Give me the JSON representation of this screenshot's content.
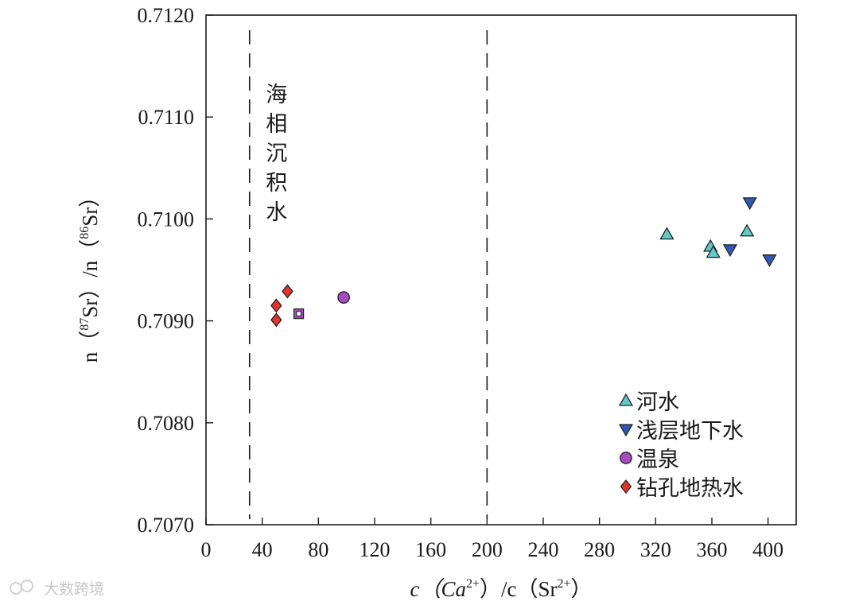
{
  "chart_data": {
    "type": "scatter",
    "xlabel": {
      "pre": "c（Ca",
      "sup1": "2+",
      "mid": "）/c（Sr",
      "sup2": "2+",
      "post": "）"
    },
    "ylabel": {
      "pre": "n（",
      "sup1": "87",
      "mid": "Sr）/n（",
      "sup2": "86",
      "post": "Sr）"
    },
    "xlim": [
      0,
      420
    ],
    "ylim": [
      0.707,
      0.712
    ],
    "xticks": [
      0,
      40,
      80,
      120,
      160,
      200,
      240,
      280,
      320,
      360,
      400
    ],
    "yticks": [
      "0.7070",
      "0.7080",
      "0.7090",
      "0.7100",
      "0.7110",
      "0.7120"
    ],
    "reference_lines": [
      {
        "x": 31,
        "style": "dashed",
        "label": "海相沉积水"
      },
      {
        "x": 200,
        "style": "dashed",
        "label": ""
      }
    ],
    "legend_position": "bottom-right",
    "series": [
      {
        "name": "河水",
        "marker": "triangle-up",
        "color": "#5fc9c7",
        "points": [
          [
            328,
            0.70985
          ],
          [
            359,
            0.70973
          ],
          [
            361,
            0.70967
          ],
          [
            385,
            0.70988
          ]
        ]
      },
      {
        "name": "浅层地下水",
        "marker": "triangle-down",
        "color": "#2f59b5",
        "points": [
          [
            373,
            0.7097
          ],
          [
            387,
            0.71016
          ],
          [
            401,
            0.7096
          ]
        ]
      },
      {
        "name": "温泉",
        "marker": "circle",
        "color": "#a74cc0",
        "points": [
          [
            98,
            0.70923
          ]
        ]
      },
      {
        "name": "钻孔地热水",
        "marker": "diamond",
        "color": "#e2342b",
        "points": [
          [
            50,
            0.70915
          ],
          [
            58,
            0.70929
          ],
          [
            50,
            0.70901
          ]
        ]
      }
    ],
    "extra_points": [
      {
        "marker": "square-open",
        "color": "#a74cc0",
        "point": [
          66,
          0.70907
        ]
      }
    ]
  },
  "watermark": "大数跨境"
}
